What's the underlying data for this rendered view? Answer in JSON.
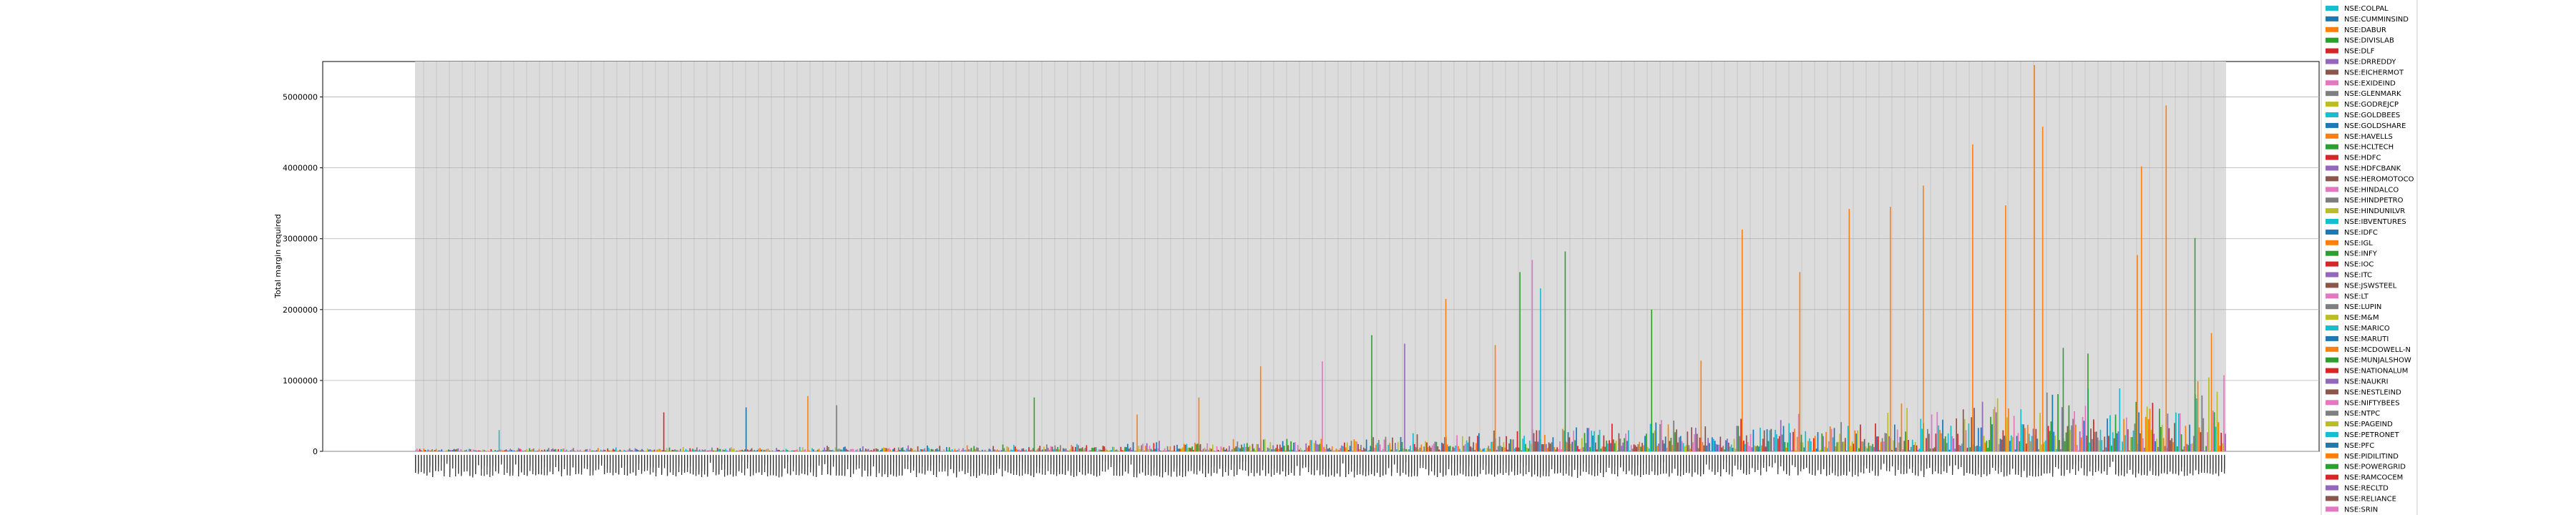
{
  "chart_data": {
    "type": "bar",
    "title": "",
    "xlabel": "",
    "ylabel": "Total margin required",
    "ylim": [
      0,
      5500000
    ],
    "yticks": [
      0,
      1000000,
      2000000,
      3000000,
      4000000,
      5000000
    ],
    "ytick_labels": [
      "0",
      "1000000",
      "2000000",
      "3000000",
      "4000000",
      "5000000"
    ],
    "grid": true,
    "plot_background": "#dcdcdc",
    "legend_placement": "right, outside plot",
    "legend": [
      {
        "label": "NSE:COLPAL",
        "color": "#17becf"
      },
      {
        "label": "NSE:CUMMINSIND",
        "color": "#1f77b4"
      },
      {
        "label": "NSE:DABUR",
        "color": "#ff7f0e"
      },
      {
        "label": "NSE:DIVISLAB",
        "color": "#2ca02c"
      },
      {
        "label": "NSE:DLF",
        "color": "#d62728"
      },
      {
        "label": "NSE:DRREDDY",
        "color": "#9467bd"
      },
      {
        "label": "NSE:EICHERMOT",
        "color": "#8c564b"
      },
      {
        "label": "NSE:EXIDEIND",
        "color": "#e377c2"
      },
      {
        "label": "NSE:GLENMARK",
        "color": "#7f7f7f"
      },
      {
        "label": "NSE:GODREJCP",
        "color": "#bcbd22"
      },
      {
        "label": "NSE:GOLDBEES",
        "color": "#17becf"
      },
      {
        "label": "NSE:GOLDSHARE",
        "color": "#1f77b4"
      },
      {
        "label": "NSE:HAVELLS",
        "color": "#ff7f0e"
      },
      {
        "label": "NSE:HCLTECH",
        "color": "#2ca02c"
      },
      {
        "label": "NSE:HDFC",
        "color": "#d62728"
      },
      {
        "label": "NSE:HDFCBANK",
        "color": "#9467bd"
      },
      {
        "label": "NSE:HEROMOTOCO",
        "color": "#8c564b"
      },
      {
        "label": "NSE:HINDALCO",
        "color": "#e377c2"
      },
      {
        "label": "NSE:HINDPETRO",
        "color": "#7f7f7f"
      },
      {
        "label": "NSE:HINDUNILVR",
        "color": "#bcbd22"
      },
      {
        "label": "NSE:IBVENTURES",
        "color": "#17becf"
      },
      {
        "label": "NSE:IDFC",
        "color": "#1f77b4"
      },
      {
        "label": "NSE:IGL",
        "color": "#ff7f0e"
      },
      {
        "label": "NSE:INFY",
        "color": "#2ca02c"
      },
      {
        "label": "NSE:IOC",
        "color": "#d62728"
      },
      {
        "label": "NSE:ITC",
        "color": "#9467bd"
      },
      {
        "label": "NSE:JSWSTEEL",
        "color": "#8c564b"
      },
      {
        "label": "NSE:LT",
        "color": "#e377c2"
      },
      {
        "label": "NSE:LUPIN",
        "color": "#7f7f7f"
      },
      {
        "label": "NSE:M&M",
        "color": "#bcbd22"
      },
      {
        "label": "NSE:MARICO",
        "color": "#17becf"
      },
      {
        "label": "NSE:MARUTI",
        "color": "#1f77b4"
      },
      {
        "label": "NSE:MCDOWELL-N",
        "color": "#ff7f0e"
      },
      {
        "label": "NSE:MUNJALSHOW",
        "color": "#2ca02c"
      },
      {
        "label": "NSE:NATIONALUM",
        "color": "#d62728"
      },
      {
        "label": "NSE:NAUKRI",
        "color": "#9467bd"
      },
      {
        "label": "NSE:NESTLEIND",
        "color": "#8c564b"
      },
      {
        "label": "NSE:NIFTYBEES",
        "color": "#e377c2"
      },
      {
        "label": "NSE:NTPC",
        "color": "#7f7f7f"
      },
      {
        "label": "NSE:PAGEIND",
        "color": "#bcbd22"
      },
      {
        "label": "NSE:PETRONET",
        "color": "#17becf"
      },
      {
        "label": "NSE:PFC",
        "color": "#1f77b4"
      },
      {
        "label": "NSE:PIDILITIND",
        "color": "#ff7f0e"
      },
      {
        "label": "NSE:POWERGRID",
        "color": "#2ca02c"
      },
      {
        "label": "NSE:RAMCOCEM",
        "color": "#d62728"
      },
      {
        "label": "NSE:RECLTD",
        "color": "#9467bd"
      },
      {
        "label": "NSE:RELIANCE",
        "color": "#8c564b"
      },
      {
        "label": "NSE:SRIN",
        "color": "#e377c2"
      }
    ],
    "peaks": [
      {
        "group": 20,
        "series": "NSE:GOLDBEES",
        "value": 300000
      },
      {
        "group": 60,
        "series": "NSE:HDFC",
        "value": 550000
      },
      {
        "group": 80,
        "series": "NSE:IDFC",
        "value": 620000
      },
      {
        "group": 95,
        "series": "NSE:DABUR",
        "value": 780000
      },
      {
        "group": 102,
        "series": "NSE:GLENMARK",
        "value": 650000
      },
      {
        "group": 150,
        "series": "NSE:HCLTECH",
        "value": 760000
      },
      {
        "group": 175,
        "series": "NSE:HAVELLS",
        "value": 520000
      },
      {
        "group": 190,
        "series": "NSE:HAVELLS",
        "value": 760000
      },
      {
        "group": 205,
        "series": "NSE:HAVELLS",
        "value": 1200000
      },
      {
        "group": 220,
        "series": "NSE:LT",
        "value": 1270000
      },
      {
        "group": 232,
        "series": "NSE:HCLTECH",
        "value": 1640000
      },
      {
        "group": 240,
        "series": "NSE:HDFCBANK",
        "value": 1520000
      },
      {
        "group": 250,
        "series": "NSE:HAVELLS",
        "value": 2150000
      },
      {
        "group": 262,
        "series": "NSE:DABUR",
        "value": 1500000
      },
      {
        "group": 268,
        "series": "NSE:HCLTECH",
        "value": 2530000
      },
      {
        "group": 271,
        "series": "NSE:NIFTYBEES",
        "value": 2700000
      },
      {
        "group": 273,
        "series": "NSE:GOLDBEES",
        "value": 2300000
      },
      {
        "group": 279,
        "series": "NSE:HCLTECH",
        "value": 2820000
      },
      {
        "group": 300,
        "series": "NSE:HCLTECH",
        "value": 2000000
      },
      {
        "group": 312,
        "series": "NSE:DABUR",
        "value": 1280000
      },
      {
        "group": 322,
        "series": "NSE:DABUR",
        "value": 3130000
      },
      {
        "group": 336,
        "series": "NSE:DABUR",
        "value": 2530000
      },
      {
        "group": 348,
        "series": "NSE:DABUR",
        "value": 3420000
      },
      {
        "group": 358,
        "series": "NSE:DABUR",
        "value": 3450000
      },
      {
        "group": 366,
        "series": "NSE:DABUR",
        "value": 3750000
      },
      {
        "group": 378,
        "series": "NSE:DABUR",
        "value": 4330000
      },
      {
        "group": 386,
        "series": "NSE:DABUR",
        "value": 3470000
      },
      {
        "group": 393,
        "series": "NSE:DABUR",
        "value": 5450000
      },
      {
        "group": 395,
        "series": "NSE:DABUR",
        "value": 4580000
      },
      {
        "group": 400,
        "series": "NSE:HCLTECH",
        "value": 1460000
      },
      {
        "group": 406,
        "series": "NSE:HCLTECH",
        "value": 1380000
      },
      {
        "group": 418,
        "series": "NSE:DABUR",
        "value": 2770000
      },
      {
        "group": 419,
        "series": "NSE:DABUR",
        "value": 4020000
      },
      {
        "group": 425,
        "series": "NSE:DABUR",
        "value": 4880000
      },
      {
        "group": 432,
        "series": "NSE:HCLTECH",
        "value": 3010000
      },
      {
        "group": 436,
        "series": "NSE:DABUR",
        "value": 1670000
      }
    ]
  }
}
